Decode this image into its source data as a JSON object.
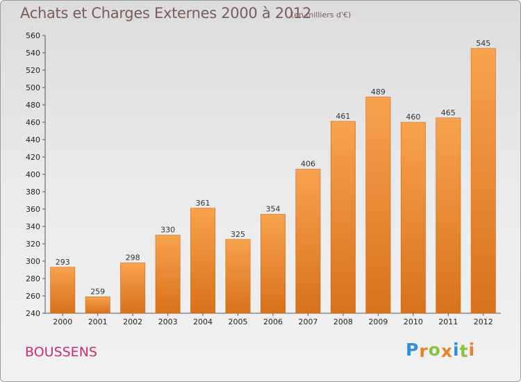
{
  "header": {
    "title": "Achats et Charges Externes 2000 à 2012",
    "unit_note": "(en milliers d'€)"
  },
  "footer": {
    "location": "BOUSSENS",
    "logo_text": "Proxiti"
  },
  "colors": {
    "bar_top": "#f8a24e",
    "bar_bottom": "#d8711a",
    "title": "#7a5a5a",
    "location": "#cc2f6f",
    "logo_letters": [
      "#2e8fd6",
      "#e8812a",
      "#8ac33f",
      "#e8812a",
      "#2e8fd6",
      "#8ac33f",
      "#e8812a"
    ]
  },
  "chart_data": {
    "type": "bar",
    "title": "Achats et Charges Externes 2000 à 2012",
    "subtitle": "(en milliers d'€)",
    "categories": [
      "2000",
      "2001",
      "2002",
      "2003",
      "2004",
      "2005",
      "2006",
      "2007",
      "2008",
      "2009",
      "2010",
      "2011",
      "2012"
    ],
    "values": [
      293,
      259,
      298,
      330,
      361,
      325,
      354,
      406,
      461,
      489,
      460,
      465,
      545
    ],
    "ylim": [
      240,
      560
    ],
    "yticks": [
      240,
      260,
      280,
      300,
      320,
      340,
      360,
      380,
      400,
      420,
      440,
      460,
      480,
      500,
      520,
      540,
      560
    ],
    "grid": false,
    "data_labels": true
  }
}
